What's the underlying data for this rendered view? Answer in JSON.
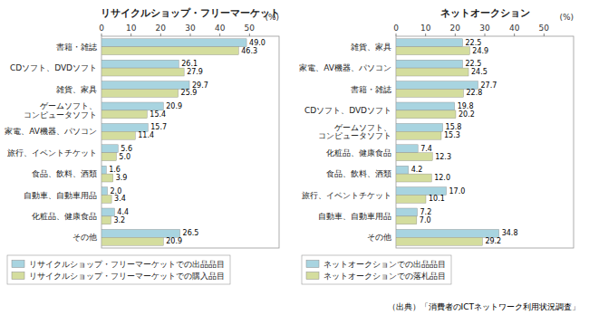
{
  "chart_data": [
    {
      "type": "bar",
      "orientation": "horizontal",
      "data_labels": true,
      "title": "リサイクルショップ・フリーマーケット",
      "xlabel": "(%)",
      "categories": [
        "書籍・雑誌",
        "CDソフト、DVDソフト",
        "雑貨、家具",
        "ゲームソフト、\nコンピュータソフト",
        "家電、AV機器、パソコン",
        "旅行、イベントチケット",
        "食品、飲料、酒類",
        "自動車、自動車用品",
        "化粧品、健康食品",
        "その他"
      ],
      "series": [
        {
          "name": "リサイクルショップ・フリーマーケットでの出品品目",
          "color": "#a8d4e0",
          "values": [
            49.0,
            26.1,
            29.7,
            20.9,
            15.7,
            5.6,
            1.6,
            2.0,
            4.4,
            26.5
          ],
          "value_labels": [
            "49.0",
            "26.1",
            "29.7",
            "20.9",
            "15.7",
            "5.6",
            "1.6",
            "2.0",
            "4.4",
            "26.5"
          ]
        },
        {
          "name": "リサイクルショップ・フリーマーケットでの購入品目",
          "color": "#d4dd9e",
          "values": [
            46.3,
            27.9,
            25.9,
            15.4,
            11.4,
            5.0,
            3.9,
            3.4,
            3.2,
            20.9
          ],
          "value_labels": [
            "46.3",
            "27.9",
            "25.9",
            "15.4",
            "11.4",
            "5.0",
            "3.9",
            "3.4",
            "3.2",
            "20.9"
          ]
        }
      ],
      "xlim": [
        0,
        60
      ],
      "xticks": [
        0,
        10,
        20,
        30,
        40,
        50
      ]
    },
    {
      "type": "bar",
      "orientation": "horizontal",
      "data_labels": true,
      "title": "ネットオークション",
      "xlabel": "(%)",
      "categories": [
        "雑貨、家具",
        "家電、AV機器、パソコン",
        "書籍・雑誌",
        "CDソフト、DVDソフト",
        "ゲームソフト、\nコンピュータソフト",
        "化粧品、健康食品",
        "食品、飲料、酒類",
        "旅行、イベントチケット",
        "自動車、自動車用品",
        "その他"
      ],
      "series": [
        {
          "name": "ネットオークションでの出品品目",
          "color": "#a8d4e0",
          "values": [
            22.5,
            22.5,
            27.7,
            19.8,
            15.8,
            7.4,
            4.2,
            17.0,
            7.2,
            34.8
          ],
          "value_labels": [
            "22.5",
            "22.5",
            "27.7",
            "19.8",
            "15.8",
            "7.4",
            "4.2",
            "17.0",
            "7.2",
            "34.8"
          ]
        },
        {
          "name": "ネットオークションでの落札品目",
          "color": "#d4dd9e",
          "values": [
            24.9,
            24.5,
            22.8,
            20.2,
            15.3,
            12.3,
            12.0,
            10.1,
            7.0,
            29.2
          ],
          "value_labels": [
            "24.9",
            "24.5",
            "22.8",
            "20.2",
            "15.3",
            "12.3",
            "12.0",
            "10.1",
            "7.0",
            "29.2"
          ]
        }
      ],
      "xlim": [
        0,
        60
      ],
      "xticks": [
        0,
        10,
        20,
        30,
        40,
        50
      ]
    }
  ],
  "source": "（出典）「消費者のICTネットワーク利用状況調査」"
}
